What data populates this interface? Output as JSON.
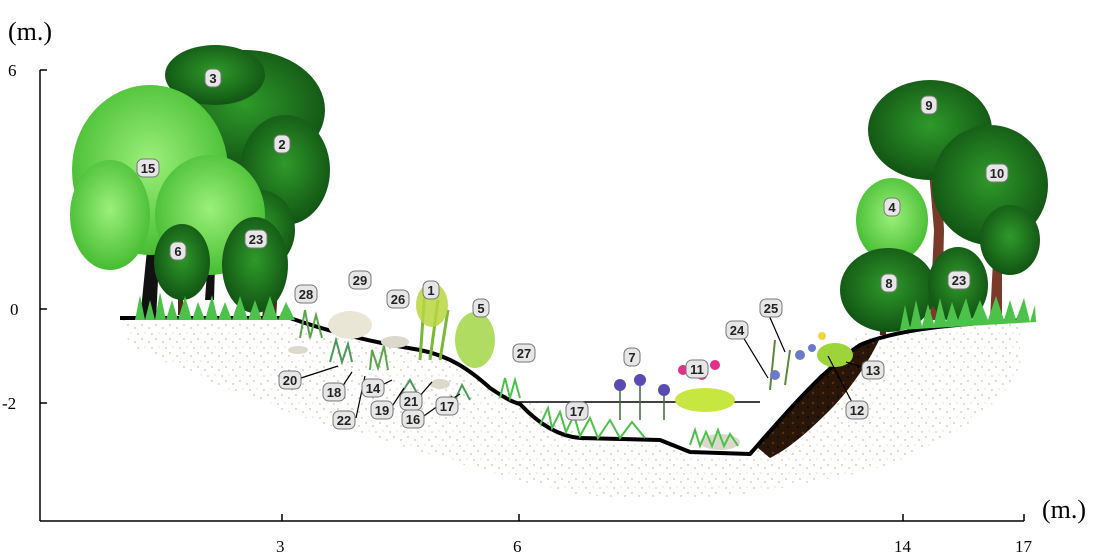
{
  "axes": {
    "y_unit": "(m.)",
    "x_unit": "(m.)",
    "y_ticks": [
      {
        "value": 6,
        "label": "6"
      },
      {
        "value": 0,
        "label": "0"
      },
      {
        "value": -2,
        "label": "-2"
      }
    ],
    "x_ticks": [
      {
        "value": 3,
        "label": "3"
      },
      {
        "value": 6,
        "label": "6"
      },
      {
        "value": 14,
        "label": "14"
      },
      {
        "value": 17,
        "label": "17"
      }
    ]
  },
  "colors": {
    "tree_light": "#6fdc4c",
    "tree_light_dark": "#3fa82c",
    "tree_dark": "#1f7a1f",
    "tree_dark_shade": "#0f4d12",
    "trunk": "#4a2a1a",
    "grass": "#4cc24a",
    "soil_speckle": "#b59a5a",
    "bank_dark": "#1a0f08",
    "water_line": "#000000",
    "badge_fill": "#e6e6e6",
    "badge_stroke": "#777777",
    "flower_purple": "#5a4bb0",
    "flower_pink": "#e0308a",
    "flower_yellow_green": "#c8e640"
  },
  "species_labels": [
    "1",
    "2",
    "3",
    "4",
    "5",
    "6",
    "7",
    "8",
    "9",
    "10",
    "11",
    "12",
    "13",
    "14",
    "15",
    "16",
    "17",
    "18",
    "19",
    "20",
    "21",
    "22",
    "23",
    "24",
    "25",
    "26",
    "27",
    "28",
    "29"
  ],
  "badges": [
    {
      "id": "b3",
      "text": "3"
    },
    {
      "id": "b2",
      "text": "2"
    },
    {
      "id": "b15",
      "text": "15"
    },
    {
      "id": "b6",
      "text": "6"
    },
    {
      "id": "b23l",
      "text": "23"
    },
    {
      "id": "b28",
      "text": "28"
    },
    {
      "id": "b29",
      "text": "29"
    },
    {
      "id": "b26",
      "text": "26"
    },
    {
      "id": "b1",
      "text": "1"
    },
    {
      "id": "b5",
      "text": "5"
    },
    {
      "id": "b27",
      "text": "27"
    },
    {
      "id": "b20",
      "text": "20"
    },
    {
      "id": "b18",
      "text": "18"
    },
    {
      "id": "b14",
      "text": "14"
    },
    {
      "id": "b22",
      "text": "22"
    },
    {
      "id": "b19",
      "text": "19"
    },
    {
      "id": "b21",
      "text": "21"
    },
    {
      "id": "b16",
      "text": "16"
    },
    {
      "id": "b17a",
      "text": "17"
    },
    {
      "id": "b17b",
      "text": "17"
    },
    {
      "id": "b7",
      "text": "7"
    },
    {
      "id": "b11",
      "text": "11"
    },
    {
      "id": "b24",
      "text": "24"
    },
    {
      "id": "b25",
      "text": "25"
    },
    {
      "id": "b13",
      "text": "13"
    },
    {
      "id": "b12",
      "text": "12"
    },
    {
      "id": "b9",
      "text": "9"
    },
    {
      "id": "b10",
      "text": "10"
    },
    {
      "id": "b4",
      "text": "4"
    },
    {
      "id": "b8",
      "text": "8"
    },
    {
      "id": "b23r",
      "text": "23"
    }
  ]
}
